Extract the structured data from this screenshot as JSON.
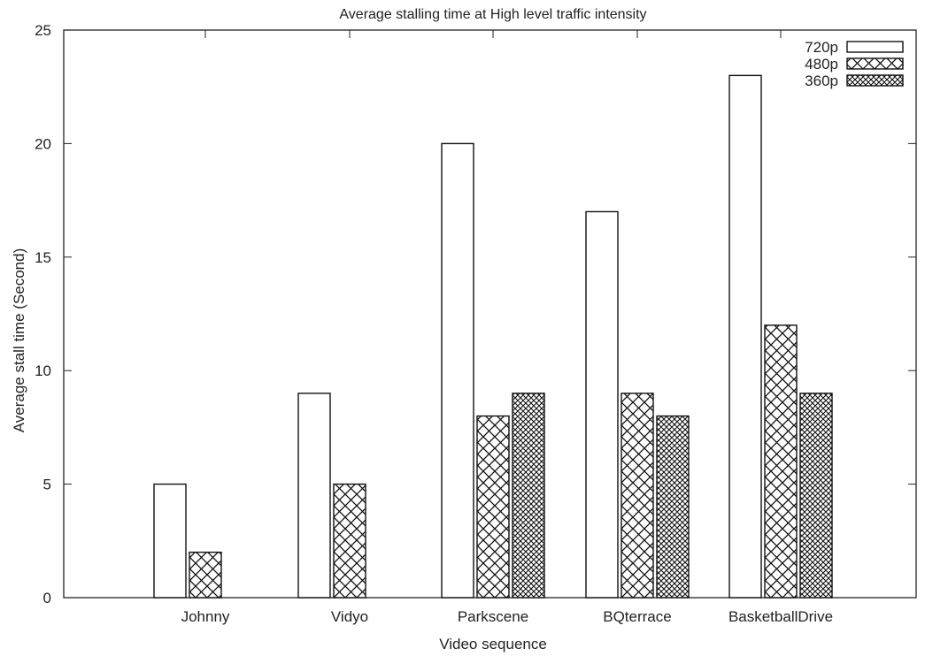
{
  "chart_data": {
    "type": "bar",
    "title": "Average stalling time at High level traffic intensity",
    "xlabel": "Video sequence",
    "ylabel": "Average stall time (Second)",
    "ylim": [
      0,
      25
    ],
    "yticks": [
      0,
      5,
      10,
      15,
      20,
      25
    ],
    "grid": false,
    "legend_position": "top-right",
    "categories": [
      "Johnny",
      "Vidyo",
      "Parkscene",
      "BQterrace",
      "BasketballDrive"
    ],
    "series": [
      {
        "name": "720p",
        "pattern": "empty",
        "values": [
          5,
          9,
          20,
          17,
          23
        ]
      },
      {
        "name": "480p",
        "pattern": "crosshatch",
        "values": [
          2,
          5,
          8,
          9,
          12
        ]
      },
      {
        "name": "360p",
        "pattern": "dense-crosshatch",
        "values": [
          0,
          0,
          9,
          8,
          9
        ]
      }
    ]
  },
  "colors": {
    "ink": "#111111",
    "bar_fill": "#ffffff"
  }
}
